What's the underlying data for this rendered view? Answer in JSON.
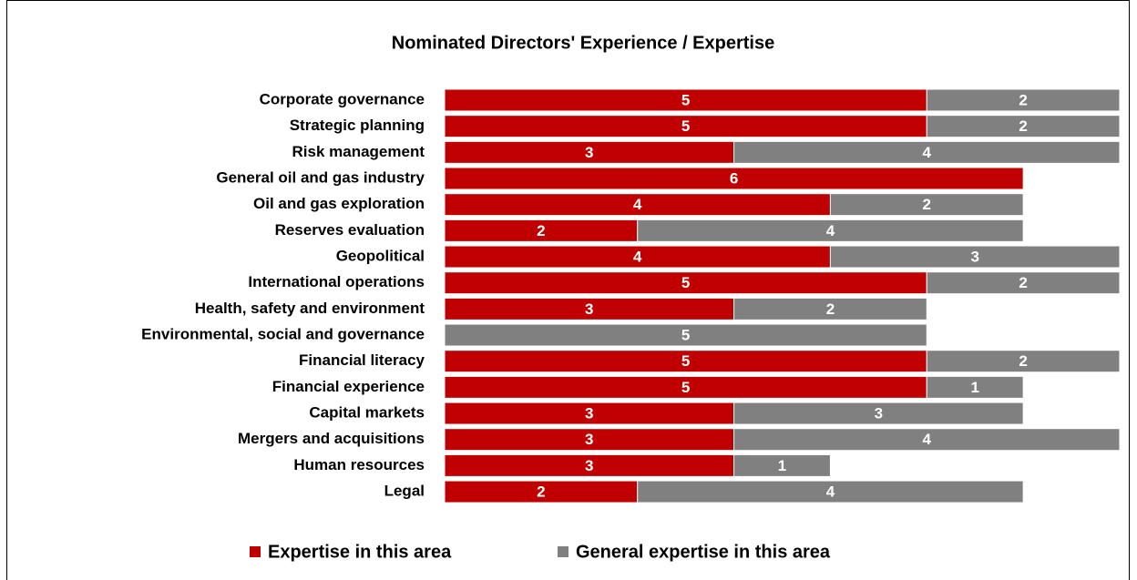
{
  "chart_data": {
    "type": "stacked_barh",
    "title": "Nominated Directors' Experience / Expertise",
    "categories": [
      "Corporate governance",
      "Strategic planning",
      "Risk management",
      "General oil and gas industry",
      "Oil and gas exploration",
      "Reserves evaluation",
      "Geopolitical",
      "International operations",
      "Health, safety and environment",
      "Environmental, social and governance",
      "Financial literacy",
      "Financial experience",
      "Capital markets ",
      "Mergers and acquisitions",
      "Human resources",
      "Legal "
    ],
    "series": [
      {
        "name": "Expertise in this area",
        "color": "#c00000",
        "values": [
          5,
          5,
          3,
          6,
          4,
          2,
          4,
          5,
          3,
          null,
          5,
          5,
          3,
          3,
          3,
          2
        ]
      },
      {
        "name": "General expertise in this area",
        "color": "#808080",
        "values": [
          2,
          2,
          4,
          null,
          2,
          4,
          3,
          2,
          2,
          5,
          2,
          1,
          3,
          4,
          1,
          4
        ]
      }
    ],
    "xlim": [
      0,
      7
    ],
    "legend": "bottom"
  }
}
